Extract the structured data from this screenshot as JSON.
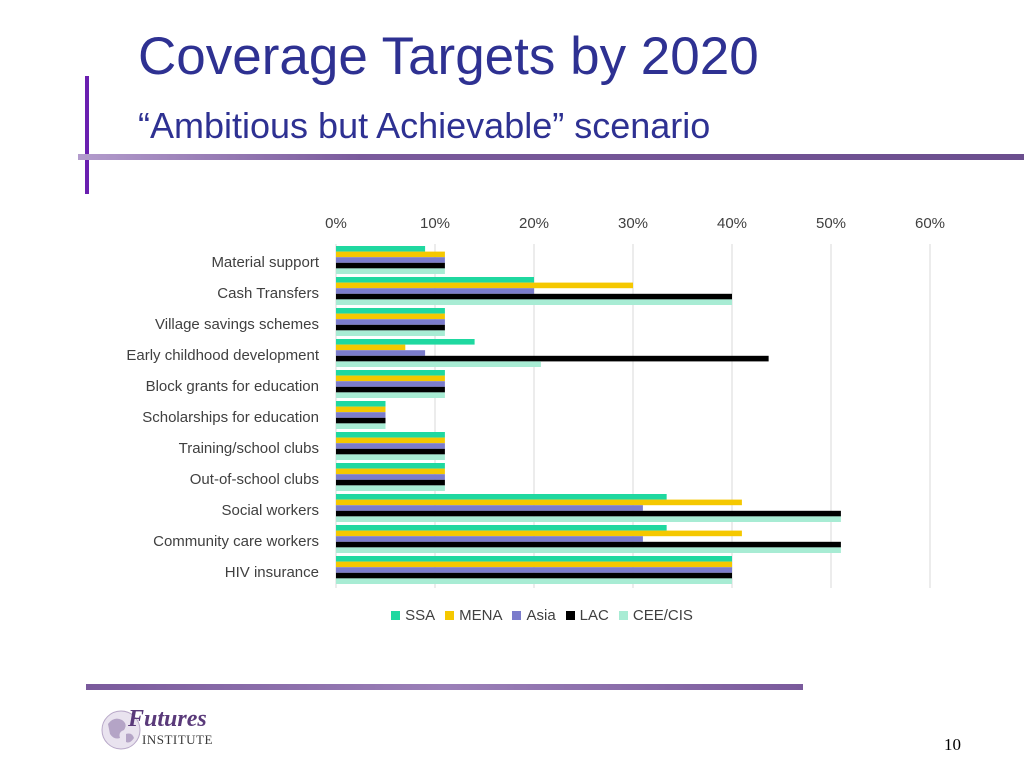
{
  "slide": {
    "title": "Coverage Targets by 2020",
    "subtitle": "“Ambitious but Achievable” scenario",
    "page_number": "10",
    "logo": {
      "name": "Futures",
      "sub": "INSTITUTE"
    }
  },
  "colors": {
    "title": "#2e3192",
    "accent_purple": "#6a1fb0",
    "rule": "#7a5a9c"
  },
  "chart_data": {
    "type": "bar",
    "orientation": "horizontal",
    "title": "",
    "xlabel": "",
    "ylabel": "",
    "xlim": [
      0,
      60
    ],
    "x_tick_labels": [
      "0%",
      "10%",
      "20%",
      "30%",
      "40%",
      "50%",
      "60%"
    ],
    "x_ticks": [
      0,
      10,
      20,
      30,
      40,
      50,
      60
    ],
    "grid": true,
    "legend_position": "bottom",
    "categories": [
      "Material support",
      "Cash Transfers",
      "Village savings schemes",
      "Early childhood development",
      "Block grants for education",
      "Scholarships for education",
      "Training/school clubs",
      "Out-of-school clubs",
      "Social workers",
      "Community care workers",
      "HIV insurance"
    ],
    "series": [
      {
        "name": "SSA",
        "color": "#1fd8a0",
        "values": [
          9,
          20,
          11,
          14,
          11,
          5,
          11,
          11,
          33.4,
          33.4,
          40
        ]
      },
      {
        "name": "MENA",
        "color": "#f5c800",
        "values": [
          11,
          30,
          11,
          7,
          11,
          5,
          11,
          11,
          41,
          41,
          40
        ]
      },
      {
        "name": "Asia",
        "color": "#7b7ccc",
        "values": [
          11,
          20,
          11,
          9,
          11,
          5,
          11,
          11,
          31,
          31,
          40
        ]
      },
      {
        "name": "LAC",
        "color": "#000000",
        "values": [
          11,
          40,
          11,
          43.7,
          11,
          5,
          11,
          11,
          51,
          51,
          40
        ]
      },
      {
        "name": "CEE/CIS",
        "color": "#a8ecd4",
        "values": [
          11,
          40,
          11,
          20.7,
          11,
          5,
          11,
          11,
          51,
          51,
          40
        ]
      }
    ]
  }
}
